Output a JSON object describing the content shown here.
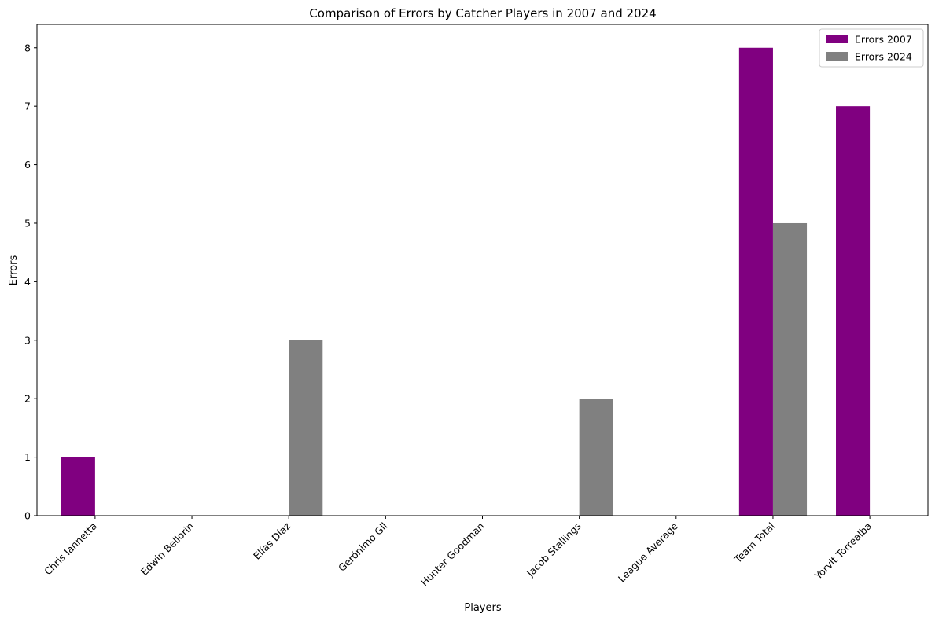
{
  "chart_data": {
    "type": "bar",
    "title": "Comparison of Errors by Catcher Players in 2007 and 2024",
    "xlabel": "Players",
    "ylabel": "Errors",
    "categories": [
      "Chris Iannetta",
      "Edwin Bellorin",
      "Elías Díaz",
      "Gerónimo Gil",
      "Hunter Goodman",
      "Jacob Stallings",
      "League Average",
      "Team Total",
      "Yorvit Torrealba"
    ],
    "series": [
      {
        "name": "Errors 2007",
        "color": "#800080",
        "values": [
          1,
          0,
          0,
          0,
          0,
          0,
          0,
          8,
          7
        ]
      },
      {
        "name": "Errors 2024",
        "color": "#808080",
        "values": [
          0,
          0,
          3,
          0,
          0,
          2,
          0,
          5,
          0
        ]
      }
    ],
    "ylim": [
      0,
      8.4
    ],
    "yticks": [
      0,
      1,
      2,
      3,
      4,
      5,
      6,
      7,
      8
    ],
    "grid": false,
    "legend_position": "top-right"
  }
}
